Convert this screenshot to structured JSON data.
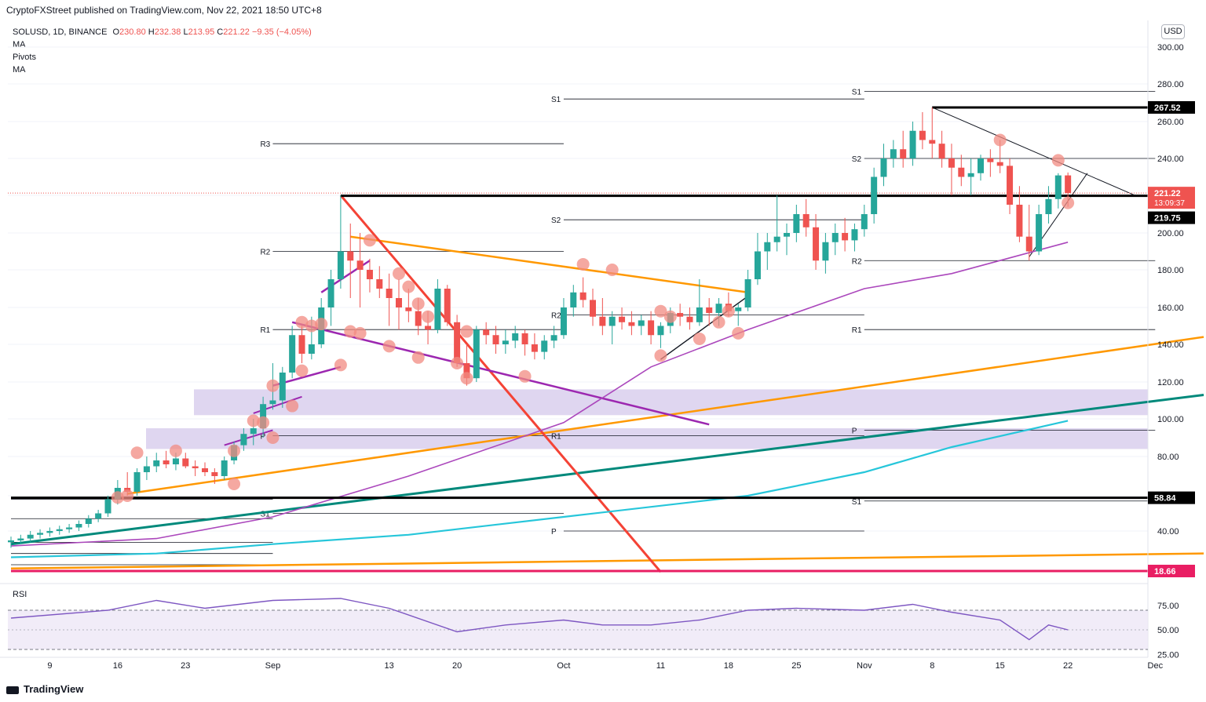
{
  "header": {
    "published": "CryptoFXStreet published on TradingView.com, Nov 22, 2021 18:50 UTC+8"
  },
  "legend": {
    "symbol": "SOLUSD, 1D, BINANCE",
    "open_label": "O",
    "open": "230.80",
    "high_label": "H",
    "high": "232.38",
    "low_label": "L",
    "low": "213.95",
    "close_label": "C",
    "close": "221.22",
    "change": "−9.35 (−4.05%)",
    "indicators": [
      "MA",
      "Pivots",
      "MA"
    ]
  },
  "currency_button": "USD",
  "footer": {
    "brand": "TradingView"
  },
  "colors": {
    "up": "#26a69a",
    "down": "#ef5350",
    "bubble": "#f28b82",
    "orange": "#ff9800",
    "purple": "#9c27b0",
    "teal": "#00897b",
    "cyan": "#26c6da",
    "ma_purple": "#ab47bc",
    "red_line": "#f44336",
    "zone": "#d1c4e9",
    "magenta": "#e91e63"
  },
  "chart_data": {
    "type": "candlestick",
    "price_axis": {
      "ticks": [
        "300.00",
        "280.00",
        "260.00",
        "240.00",
        "220.00",
        "200.00",
        "180.00",
        "160.00",
        "140.00",
        "120.00",
        "100.00",
        "80.00",
        "60.00",
        "40.00"
      ],
      "scale": "piecewise"
    },
    "time_axis": {
      "ticks": [
        "9",
        "16",
        "23",
        "Sep",
        "13",
        "20",
        "Oct",
        "11",
        "18",
        "25",
        "Nov",
        "8",
        "15",
        "22",
        "Dec"
      ]
    },
    "price_labels": [
      {
        "text": "267.52",
        "style": "black"
      },
      {
        "text": "221.22",
        "sub": "13:09:37",
        "style": "red"
      },
      {
        "text": "219.75",
        "style": "black"
      },
      {
        "text": "58.84",
        "style": "black"
      },
      {
        "text": "18.66",
        "style": "magenta"
      }
    ],
    "horizontal_levels": [
      {
        "price": 267.52,
        "from": "Nov 8",
        "to": "Dec 1",
        "width": 3
      },
      {
        "price": 219.75,
        "from": "Sep 8",
        "to": "Dec 1",
        "width": 3
      },
      {
        "price": 58.84,
        "from": "Aug 5",
        "to": "Dec 1",
        "width": 3
      },
      {
        "price": 18.66,
        "from": "Aug 5",
        "to": "Dec 5",
        "width": 3,
        "color": "magenta"
      }
    ],
    "pivots": [
      {
        "period": "Sep",
        "R3": 248,
        "R2": 190,
        "R1": 148,
        "P": 91,
        "S1": 50
      },
      {
        "period": "Oct",
        "R2": 272,
        "R1": 207,
        "P": 156,
        "S1": 91,
        "S2": 40
      },
      {
        "period": "Nov",
        "R2": 276,
        "R1": 240,
        "P": 185,
        "S1": 148,
        "S2": 94,
        "S3": 57
      }
    ],
    "pivot_labels": [
      "R3",
      "R2",
      "R1",
      "P",
      "S1",
      "S1",
      "S2",
      "R2",
      "R1",
      "P",
      "S1",
      "S2",
      "R2",
      "R1",
      "P",
      "S1",
      "S2",
      "S3"
    ],
    "candles": [
      {
        "d": "Aug 5",
        "o": 34,
        "h": 37,
        "l": 31,
        "c": 35
      },
      {
        "d": "Aug 6",
        "o": 35,
        "h": 38,
        "l": 33,
        "c": 36
      },
      {
        "d": "Aug 7",
        "o": 36,
        "h": 40,
        "l": 34,
        "c": 38
      },
      {
        "d": "Aug 8",
        "o": 38,
        "h": 41,
        "l": 36,
        "c": 39
      },
      {
        "d": "Aug 9",
        "o": 39,
        "h": 42,
        "l": 37,
        "c": 40
      },
      {
        "d": "Aug 10",
        "o": 40,
        "h": 43,
        "l": 38,
        "c": 41
      },
      {
        "d": "Aug 11",
        "o": 41,
        "h": 44,
        "l": 39,
        "c": 42
      },
      {
        "d": "Aug 12",
        "o": 42,
        "h": 46,
        "l": 40,
        "c": 44
      },
      {
        "d": "Aug 13",
        "o": 44,
        "h": 49,
        "l": 42,
        "c": 47
      },
      {
        "d": "Aug 14",
        "o": 47,
        "h": 52,
        "l": 45,
        "c": 50
      },
      {
        "d": "Aug 15",
        "o": 50,
        "h": 60,
        "l": 48,
        "c": 58
      },
      {
        "d": "Aug 16",
        "o": 58,
        "h": 68,
        "l": 55,
        "c": 64
      },
      {
        "d": "Aug 17",
        "o": 64,
        "h": 72,
        "l": 60,
        "c": 62
      },
      {
        "d": "Aug 18",
        "o": 62,
        "h": 74,
        "l": 60,
        "c": 72
      },
      {
        "d": "Aug 19",
        "o": 72,
        "h": 80,
        "l": 68,
        "c": 75
      },
      {
        "d": "Aug 20",
        "o": 75,
        "h": 82,
        "l": 72,
        "c": 78
      },
      {
        "d": "Aug 21",
        "o": 78,
        "h": 83,
        "l": 74,
        "c": 76
      },
      {
        "d": "Aug 22",
        "o": 76,
        "h": 82,
        "l": 73,
        "c": 79
      },
      {
        "d": "Aug 23",
        "o": 79,
        "h": 82,
        "l": 74,
        "c": 75
      },
      {
        "d": "Aug 24",
        "o": 75,
        "h": 78,
        "l": 70,
        "c": 74
      },
      {
        "d": "Aug 25",
        "o": 74,
        "h": 77,
        "l": 70,
        "c": 72
      },
      {
        "d": "Aug 26",
        "o": 72,
        "h": 74,
        "l": 66,
        "c": 70
      },
      {
        "d": "Aug 27",
        "o": 70,
        "h": 80,
        "l": 68,
        "c": 78
      },
      {
        "d": "Aug 28",
        "o": 78,
        "h": 88,
        "l": 76,
        "c": 86
      },
      {
        "d": "Aug 29",
        "o": 86,
        "h": 95,
        "l": 83,
        "c": 92
      },
      {
        "d": "Aug 30",
        "o": 92,
        "h": 100,
        "l": 86,
        "c": 95
      },
      {
        "d": "Aug 31",
        "o": 95,
        "h": 112,
        "l": 90,
        "c": 108
      },
      {
        "d": "Sep 1",
        "o": 108,
        "h": 130,
        "l": 105,
        "c": 110
      },
      {
        "d": "Sep 2",
        "o": 110,
        "h": 128,
        "l": 106,
        "c": 125
      },
      {
        "d": "Sep 3",
        "o": 125,
        "h": 150,
        "l": 122,
        "c": 145
      },
      {
        "d": "Sep 4",
        "o": 145,
        "h": 150,
        "l": 130,
        "c": 135
      },
      {
        "d": "Sep 5",
        "o": 135,
        "h": 155,
        "l": 132,
        "c": 140
      },
      {
        "d": "Sep 6",
        "o": 140,
        "h": 165,
        "l": 138,
        "c": 160
      },
      {
        "d": "Sep 7",
        "o": 160,
        "h": 180,
        "l": 150,
        "c": 175
      },
      {
        "d": "Sep 8",
        "o": 175,
        "h": 220,
        "l": 170,
        "c": 190
      },
      {
        "d": "Sep 9",
        "o": 190,
        "h": 205,
        "l": 165,
        "c": 185
      },
      {
        "d": "Sep 10",
        "o": 185,
        "h": 200,
        "l": 160,
        "c": 180
      },
      {
        "d": "Sep 11",
        "o": 180,
        "h": 186,
        "l": 168,
        "c": 175
      },
      {
        "d": "Sep 12",
        "o": 175,
        "h": 182,
        "l": 165,
        "c": 170
      },
      {
        "d": "Sep 13",
        "o": 170,
        "h": 178,
        "l": 150,
        "c": 165
      },
      {
        "d": "Sep 14",
        "o": 165,
        "h": 175,
        "l": 148,
        "c": 160
      },
      {
        "d": "Sep 15",
        "o": 160,
        "h": 170,
        "l": 152,
        "c": 158
      },
      {
        "d": "Sep 16",
        "o": 158,
        "h": 165,
        "l": 145,
        "c": 150
      },
      {
        "d": "Sep 17",
        "o": 150,
        "h": 158,
        "l": 140,
        "c": 148
      },
      {
        "d": "Sep 18",
        "o": 148,
        "h": 175,
        "l": 146,
        "c": 170
      },
      {
        "d": "Sep 19",
        "o": 170,
        "h": 172,
        "l": 150,
        "c": 152
      },
      {
        "d": "Sep 20",
        "o": 152,
        "h": 156,
        "l": 128,
        "c": 130
      },
      {
        "d": "Sep 21",
        "o": 130,
        "h": 140,
        "l": 118,
        "c": 122
      },
      {
        "d": "Sep 22",
        "o": 122,
        "h": 150,
        "l": 120,
        "c": 148
      },
      {
        "d": "Sep 23",
        "o": 148,
        "h": 152,
        "l": 140,
        "c": 145
      },
      {
        "d": "Sep 24",
        "o": 145,
        "h": 150,
        "l": 135,
        "c": 140
      },
      {
        "d": "Sep 25",
        "o": 140,
        "h": 148,
        "l": 135,
        "c": 142
      },
      {
        "d": "Sep 26",
        "o": 142,
        "h": 150,
        "l": 138,
        "c": 146
      },
      {
        "d": "Sep 27",
        "o": 146,
        "h": 148,
        "l": 134,
        "c": 140
      },
      {
        "d": "Sep 28",
        "o": 140,
        "h": 146,
        "l": 132,
        "c": 136
      },
      {
        "d": "Sep 29",
        "o": 136,
        "h": 145,
        "l": 132,
        "c": 142
      },
      {
        "d": "Sep 30",
        "o": 142,
        "h": 150,
        "l": 138,
        "c": 145
      },
      {
        "d": "Oct 1",
        "o": 145,
        "h": 165,
        "l": 143,
        "c": 160
      },
      {
        "d": "Oct 2",
        "o": 160,
        "h": 172,
        "l": 155,
        "c": 168
      },
      {
        "d": "Oct 3",
        "o": 168,
        "h": 176,
        "l": 160,
        "c": 164
      },
      {
        "d": "Oct 4",
        "o": 164,
        "h": 170,
        "l": 150,
        "c": 155
      },
      {
        "d": "Oct 5",
        "o": 155,
        "h": 165,
        "l": 145,
        "c": 150
      },
      {
        "d": "Oct 6",
        "o": 150,
        "h": 158,
        "l": 140,
        "c": 155
      },
      {
        "d": "Oct 7",
        "o": 155,
        "h": 160,
        "l": 148,
        "c": 152
      },
      {
        "d": "Oct 8",
        "o": 152,
        "h": 158,
        "l": 145,
        "c": 150
      },
      {
        "d": "Oct 9",
        "o": 150,
        "h": 156,
        "l": 145,
        "c": 153
      },
      {
        "d": "Oct 10",
        "o": 153,
        "h": 158,
        "l": 140,
        "c": 145
      },
      {
        "d": "Oct 11",
        "o": 145,
        "h": 152,
        "l": 138,
        "c": 150
      },
      {
        "d": "Oct 12",
        "o": 150,
        "h": 160,
        "l": 146,
        "c": 157
      },
      {
        "d": "Oct 13",
        "o": 157,
        "h": 162,
        "l": 150,
        "c": 155
      },
      {
        "d": "Oct 14",
        "o": 155,
        "h": 160,
        "l": 148,
        "c": 152
      },
      {
        "d": "Oct 15",
        "o": 152,
        "h": 175,
        "l": 150,
        "c": 160
      },
      {
        "d": "Oct 16",
        "o": 160,
        "h": 165,
        "l": 150,
        "c": 157
      },
      {
        "d": "Oct 17",
        "o": 157,
        "h": 165,
        "l": 150,
        "c": 162
      },
      {
        "d": "Oct 18",
        "o": 162,
        "h": 168,
        "l": 155,
        "c": 158
      },
      {
        "d": "Oct 19",
        "o": 158,
        "h": 162,
        "l": 150,
        "c": 160
      },
      {
        "d": "Oct 20",
        "o": 160,
        "h": 180,
        "l": 158,
        "c": 175
      },
      {
        "d": "Oct 21",
        "o": 175,
        "h": 200,
        "l": 172,
        "c": 190
      },
      {
        "d": "Oct 22",
        "o": 190,
        "h": 200,
        "l": 180,
        "c": 195
      },
      {
        "d": "Oct 23",
        "o": 195,
        "h": 220,
        "l": 190,
        "c": 198
      },
      {
        "d": "Oct 24",
        "o": 198,
        "h": 205,
        "l": 188,
        "c": 200
      },
      {
        "d": "Oct 25",
        "o": 200,
        "h": 215,
        "l": 195,
        "c": 210
      },
      {
        "d": "Oct 26",
        "o": 210,
        "h": 218,
        "l": 198,
        "c": 203
      },
      {
        "d": "Oct 27",
        "o": 203,
        "h": 210,
        "l": 180,
        "c": 185
      },
      {
        "d": "Oct 28",
        "o": 185,
        "h": 200,
        "l": 178,
        "c": 195
      },
      {
        "d": "Oct 29",
        "o": 195,
        "h": 205,
        "l": 188,
        "c": 200
      },
      {
        "d": "Oct 30",
        "o": 200,
        "h": 208,
        "l": 190,
        "c": 196
      },
      {
        "d": "Oct 31",
        "o": 196,
        "h": 205,
        "l": 190,
        "c": 202
      },
      {
        "d": "Nov 1",
        "o": 202,
        "h": 215,
        "l": 198,
        "c": 210
      },
      {
        "d": "Nov 2",
        "o": 210,
        "h": 235,
        "l": 205,
        "c": 230
      },
      {
        "d": "Nov 3",
        "o": 230,
        "h": 248,
        "l": 225,
        "c": 240
      },
      {
        "d": "Nov 4",
        "o": 240,
        "h": 250,
        "l": 235,
        "c": 245
      },
      {
        "d": "Nov 5",
        "o": 245,
        "h": 255,
        "l": 235,
        "c": 240
      },
      {
        "d": "Nov 6",
        "o": 240,
        "h": 260,
        "l": 236,
        "c": 255
      },
      {
        "d": "Nov 7",
        "o": 255,
        "h": 265,
        "l": 245,
        "c": 250
      },
      {
        "d": "Nov 8",
        "o": 250,
        "h": 267.52,
        "l": 240,
        "c": 248
      },
      {
        "d": "Nov 9",
        "o": 248,
        "h": 255,
        "l": 235,
        "c": 240
      },
      {
        "d": "Nov 10",
        "o": 240,
        "h": 248,
        "l": 220,
        "c": 235
      },
      {
        "d": "Nov 11",
        "o": 235,
        "h": 242,
        "l": 225,
        "c": 230
      },
      {
        "d": "Nov 12",
        "o": 230,
        "h": 240,
        "l": 220,
        "c": 232
      },
      {
        "d": "Nov 13",
        "o": 232,
        "h": 242,
        "l": 228,
        "c": 240
      },
      {
        "d": "Nov 14",
        "o": 240,
        "h": 245,
        "l": 230,
        "c": 238
      },
      {
        "d": "Nov 15",
        "o": 238,
        "h": 250,
        "l": 232,
        "c": 236
      },
      {
        "d": "Nov 16",
        "o": 236,
        "h": 240,
        "l": 210,
        "c": 215
      },
      {
        "d": "Nov 17",
        "o": 215,
        "h": 225,
        "l": 195,
        "c": 198
      },
      {
        "d": "Nov 18",
        "o": 198,
        "h": 215,
        "l": 185,
        "c": 190
      },
      {
        "d": "Nov 19",
        "o": 190,
        "h": 215,
        "l": 188,
        "c": 210
      },
      {
        "d": "Nov 20",
        "o": 210,
        "h": 225,
        "l": 205,
        "c": 218
      },
      {
        "d": "Nov 21",
        "o": 218,
        "h": 232,
        "l": 213,
        "c": 230.8
      },
      {
        "d": "Nov 22",
        "o": 230.8,
        "h": 232.38,
        "l": 213.95,
        "c": 221.22
      }
    ],
    "moving_averages": [
      {
        "color": "ma_purple",
        "points": [
          [
            "Aug 5",
            32
          ],
          [
            "Aug 20",
            36
          ],
          [
            "Sep 1",
            48
          ],
          [
            "Sep 15",
            70
          ],
          [
            "Oct 1",
            98
          ],
          [
            "Oct 10",
            128
          ],
          [
            "Oct 20",
            148
          ],
          [
            "Nov 1",
            170
          ],
          [
            "Nov 10",
            178
          ],
          [
            "Nov 22",
            195
          ]
        ]
      },
      {
        "color": "cyan",
        "points": [
          [
            "Aug 5",
            26
          ],
          [
            "Aug 20",
            28
          ],
          [
            "Sep 1",
            33
          ],
          [
            "Sep 15",
            38
          ],
          [
            "Oct 1",
            48
          ],
          [
            "Oct 20",
            60
          ],
          [
            "Nov 1",
            72
          ],
          [
            "Nov 10",
            85
          ],
          [
            "Nov 22",
            99
          ]
        ]
      }
    ],
    "oscillator": {
      "name": "RSI",
      "ticks": [
        "75.00",
        "50.00",
        "25.00"
      ],
      "band": [
        30,
        70
      ],
      "points": [
        [
          "Aug 5",
          62
        ],
        [
          "Aug 15",
          70
        ],
        [
          "Aug 20",
          80
        ],
        [
          "Aug 25",
          72
        ],
        [
          "Sep 1",
          80
        ],
        [
          "Sep 8",
          82
        ],
        [
          "Sep 13",
          72
        ],
        [
          "Sep 20",
          48
        ],
        [
          "Sep 25",
          55
        ],
        [
          "Oct 1",
          60
        ],
        [
          "Oct 5",
          55
        ],
        [
          "Oct 10",
          55
        ],
        [
          "Oct 15",
          60
        ],
        [
          "Oct 20",
          70
        ],
        [
          "Oct 25",
          72
        ],
        [
          "Nov 1",
          70
        ],
        [
          "Nov 6",
          76
        ],
        [
          "Nov 10",
          68
        ],
        [
          "Nov 15",
          60
        ],
        [
          "Nov 18",
          40
        ],
        [
          "Nov 20",
          55
        ],
        [
          "Nov 22",
          50
        ]
      ]
    }
  }
}
